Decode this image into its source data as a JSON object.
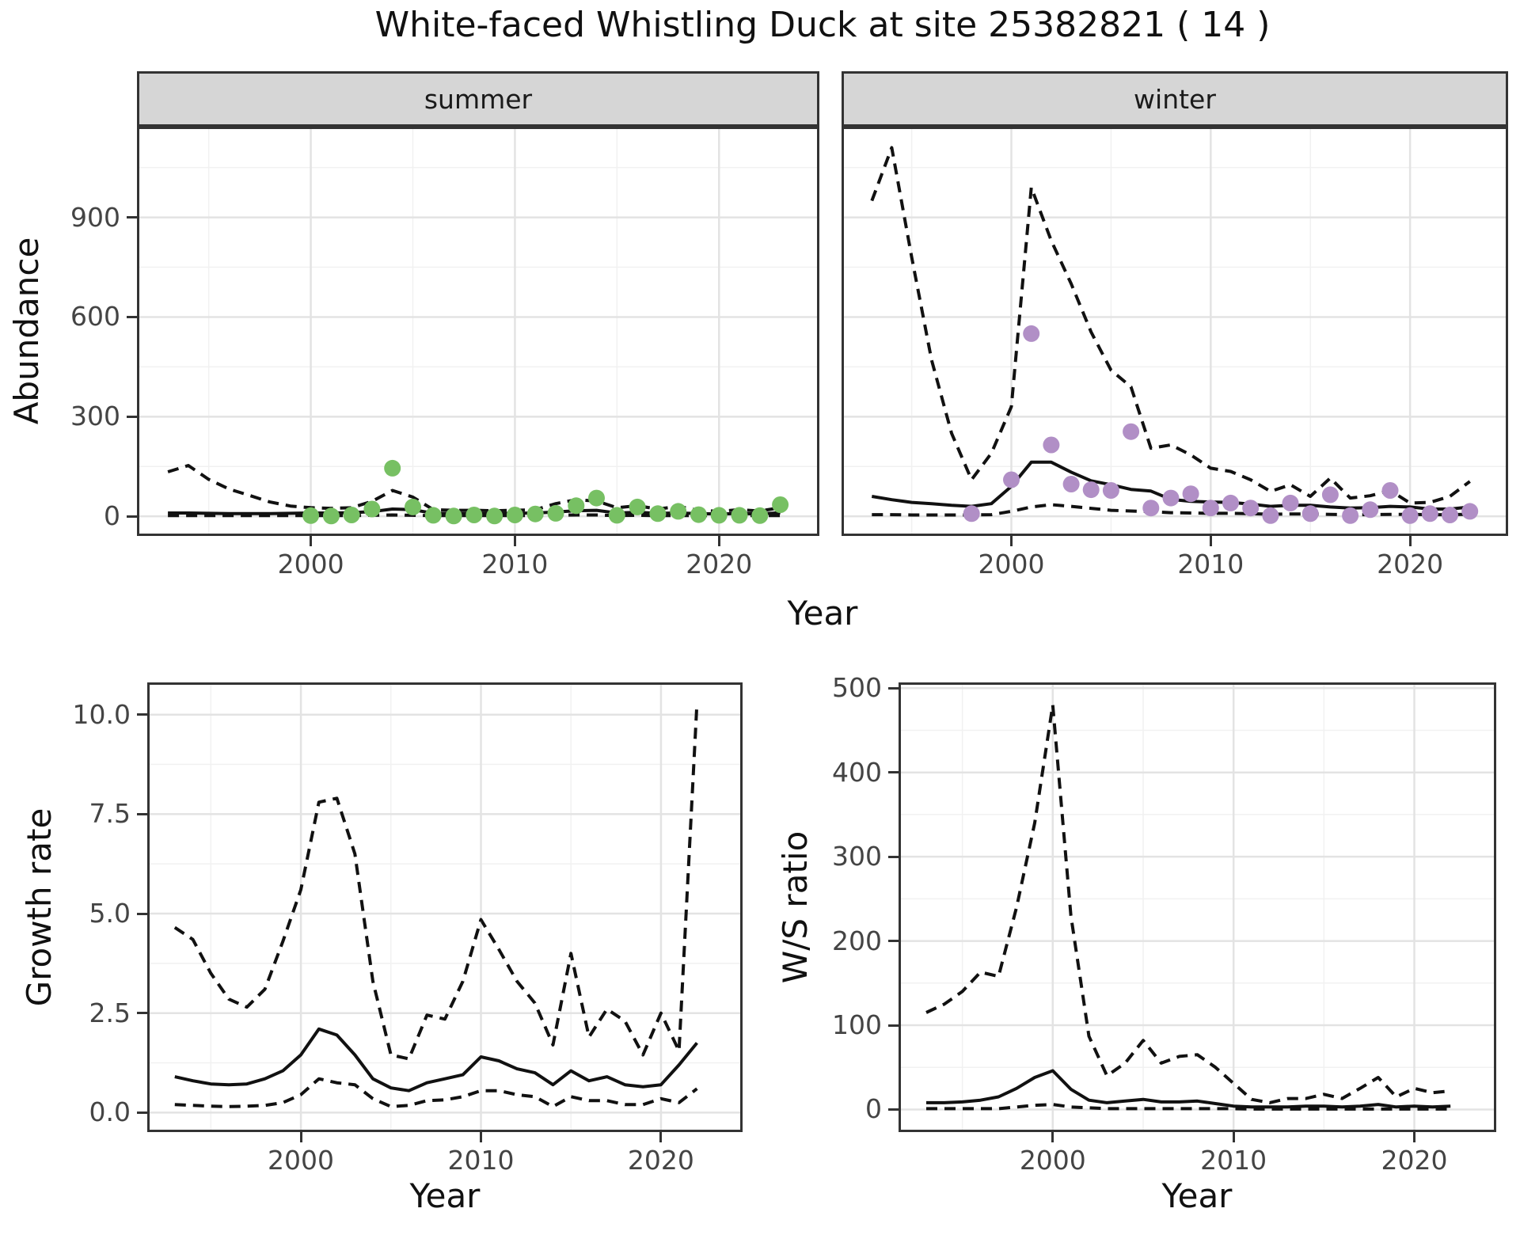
{
  "title": "White-faced Whistling Duck at site 25382821 ( 14 )",
  "colors": {
    "summer_point": "#77c063",
    "winter_point": "#b18fc6",
    "line": "#111111",
    "strip_bg": "#d6d6d6",
    "panel_border": "#333333",
    "grid_major": "#e3e3e3",
    "grid_minor": "#f1f1f1",
    "tick_text": "#444444"
  },
  "chart_data": [
    {
      "id": "abundance-summer",
      "type": "line",
      "facet_label": "summer",
      "ylabel": "Abundance",
      "xlabel": "Year",
      "xlim": [
        1991.6,
        2024.8
      ],
      "ylim": [
        -52,
        1166
      ],
      "xticks": {
        "values": [
          2000,
          2010,
          2020
        ],
        "labels": [
          "2000",
          "2010",
          "2020"
        ]
      },
      "yticks": {
        "values": [
          0,
          300,
          600,
          900
        ],
        "labels": [
          "0",
          "300",
          "600",
          "900"
        ]
      },
      "x": [
        1993,
        1994,
        1995,
        1996,
        1997,
        1998,
        1999,
        2000,
        2001,
        2002,
        2003,
        2004,
        2005,
        2006,
        2007,
        2008,
        2009,
        2010,
        2011,
        2012,
        2013,
        2014,
        2015,
        2016,
        2017,
        2018,
        2019,
        2020,
        2021,
        2022,
        2023
      ],
      "series": [
        {
          "name": "upper-ci",
          "style": "dashed",
          "values": [
            134,
            153,
            111,
            82,
            63,
            43,
            31,
            26,
            24,
            26,
            45,
            78,
            58,
            20,
            18,
            18,
            17,
            18,
            20,
            38,
            50,
            46,
            26,
            32,
            22,
            30,
            18,
            15,
            20,
            16,
            26
          ]
        },
        {
          "name": "lower-ci",
          "style": "dashed",
          "values": [
            2,
            2,
            2,
            2,
            2,
            2,
            2,
            2,
            2,
            2,
            3,
            4,
            3,
            2,
            2,
            2,
            2,
            2,
            2,
            3,
            4,
            4,
            2,
            3,
            2,
            2,
            2,
            2,
            2,
            2,
            2
          ]
        },
        {
          "name": "mean",
          "style": "solid",
          "values": [
            10,
            10,
            9,
            8,
            8,
            8,
            9,
            10,
            10,
            11,
            14,
            22,
            20,
            9,
            8,
            8,
            8,
            9,
            10,
            13,
            17,
            18,
            10,
            12,
            9,
            10,
            8,
            7,
            8,
            7,
            11
          ]
        }
      ],
      "points": {
        "color": "#77c063",
        "x": [
          2000,
          2001,
          2002,
          2003,
          2004,
          2005,
          2006,
          2007,
          2008,
          2009,
          2010,
          2011,
          2012,
          2013,
          2014,
          2015,
          2016,
          2017,
          2018,
          2019,
          2020,
          2021,
          2022,
          2023
        ],
        "y": [
          2,
          1,
          4,
          22,
          145,
          28,
          3,
          1,
          4,
          1,
          4,
          7,
          9,
          32,
          55,
          3,
          28,
          8,
          15,
          5,
          3,
          3,
          2,
          35
        ]
      }
    },
    {
      "id": "abundance-winter",
      "type": "line",
      "facet_label": "winter",
      "ylabel": "Abundance",
      "xlabel": "Year",
      "xlim": [
        1991.6,
        2024.8
      ],
      "ylim": [
        -52,
        1166
      ],
      "xticks": {
        "values": [
          2000,
          2010,
          2020
        ],
        "labels": [
          "2000",
          "2010",
          "2020"
        ]
      },
      "yticks": {
        "values": [
          0,
          300,
          600,
          900
        ],
        "labels": [
          "0",
          "300",
          "600",
          "900"
        ]
      },
      "x": [
        1993,
        1994,
        1995,
        1996,
        1997,
        1998,
        1999,
        2000,
        2001,
        2002,
        2003,
        2004,
        2005,
        2006,
        2007,
        2008,
        2009,
        2010,
        2011,
        2012,
        2013,
        2014,
        2015,
        2016,
        2017,
        2018,
        2019,
        2020,
        2021,
        2022,
        2023
      ],
      "series": [
        {
          "name": "upper-ci",
          "style": "dashed",
          "values": [
            950,
            1110,
            780,
            470,
            250,
            110,
            190,
            330,
            990,
            830,
            700,
            555,
            440,
            390,
            205,
            215,
            185,
            145,
            135,
            110,
            75,
            95,
            60,
            115,
            55,
            62,
            78,
            40,
            42,
            60,
            105
          ]
        },
        {
          "name": "lower-ci",
          "style": "dashed",
          "values": [
            5,
            5,
            4,
            4,
            4,
            4,
            5,
            15,
            28,
            35,
            30,
            24,
            18,
            16,
            14,
            11,
            10,
            9,
            9,
            8,
            6,
            7,
            7,
            6,
            5,
            5,
            6,
            6,
            5,
            5,
            6
          ]
        },
        {
          "name": "mean",
          "style": "solid",
          "values": [
            60,
            50,
            42,
            38,
            33,
            30,
            38,
            90,
            163,
            163,
            133,
            107,
            95,
            81,
            76,
            51,
            45,
            43,
            42,
            37,
            30,
            33,
            33,
            28,
            25,
            26,
            30,
            28,
            22,
            22,
            28
          ]
        }
      ],
      "points": {
        "color": "#b18fc6",
        "x": [
          1998,
          2000,
          2001,
          2002,
          2003,
          2004,
          2005,
          2006,
          2007,
          2008,
          2009,
          2010,
          2011,
          2012,
          2013,
          2014,
          2015,
          2016,
          2017,
          2018,
          2019,
          2020,
          2021,
          2022,
          2023
        ],
        "y": [
          8,
          110,
          550,
          215,
          97,
          80,
          78,
          255,
          25,
          55,
          68,
          25,
          40,
          25,
          2,
          40,
          8,
          65,
          2,
          20,
          78,
          2,
          8,
          4,
          15
        ]
      }
    },
    {
      "id": "growth-rate",
      "type": "line",
      "facet_label": "",
      "ylabel": "Growth rate",
      "xlabel": "Year",
      "xlim": [
        1991.6,
        2024.4
      ],
      "ylim": [
        -0.43,
        10.75
      ],
      "xticks": {
        "values": [
          2000,
          2010,
          2020
        ],
        "labels": [
          "2000",
          "2010",
          "2020"
        ]
      },
      "yticks": {
        "values": [
          0,
          2.5,
          5,
          7.5,
          10
        ],
        "labels": [
          "0.0",
          "2.5",
          "5.0",
          "7.5",
          "10.0"
        ]
      },
      "x": [
        1993,
        1994,
        1995,
        1996,
        1997,
        1998,
        1999,
        2000,
        2001,
        2002,
        2003,
        2004,
        2005,
        2006,
        2007,
        2008,
        2009,
        2010,
        2011,
        2012,
        2013,
        2014,
        2015,
        2016,
        2017,
        2018,
        2019,
        2020,
        2021,
        2022
      ],
      "series": [
        {
          "name": "upper-ci",
          "style": "dashed",
          "values": [
            4.65,
            4.35,
            3.5,
            2.85,
            2.65,
            3.1,
            4.3,
            5.6,
            7.8,
            7.9,
            6.5,
            3.3,
            1.45,
            1.35,
            2.45,
            2.35,
            3.3,
            4.85,
            4.1,
            3.3,
            2.75,
            1.7,
            4.0,
            1.9,
            2.6,
            2.3,
            1.45,
            2.5,
            1.55,
            10.3
          ]
        },
        {
          "name": "lower-ci",
          "style": "dashed",
          "values": [
            0.2,
            0.18,
            0.16,
            0.15,
            0.16,
            0.18,
            0.25,
            0.45,
            0.85,
            0.75,
            0.7,
            0.35,
            0.15,
            0.18,
            0.3,
            0.32,
            0.4,
            0.55,
            0.55,
            0.45,
            0.4,
            0.15,
            0.4,
            0.3,
            0.3,
            0.2,
            0.2,
            0.35,
            0.25,
            0.6
          ]
        },
        {
          "name": "mean",
          "style": "solid",
          "values": [
            0.9,
            0.8,
            0.72,
            0.7,
            0.72,
            0.85,
            1.05,
            1.45,
            2.1,
            1.95,
            1.45,
            0.85,
            0.62,
            0.55,
            0.75,
            0.85,
            0.95,
            1.4,
            1.3,
            1.1,
            1.0,
            0.7,
            1.05,
            0.8,
            0.9,
            0.7,
            0.65,
            0.7,
            1.2,
            1.75
          ]
        }
      ],
      "points": null
    },
    {
      "id": "ws-ratio",
      "type": "line",
      "facet_label": "",
      "ylabel": "W/S ratio",
      "xlabel": "Year",
      "xlim": [
        1991.6,
        2024.4
      ],
      "ylim": [
        -24,
        504
      ],
      "xticks": {
        "values": [
          2000,
          2010,
          2020
        ],
        "labels": [
          "2000",
          "2010",
          "2020"
        ]
      },
      "yticks": {
        "values": [
          0,
          100,
          200,
          300,
          400,
          500
        ],
        "labels": [
          "0",
          "100",
          "200",
          "300",
          "400",
          "500"
        ]
      },
      "x": [
        1993,
        1994,
        1995,
        1996,
        1997,
        1998,
        1999,
        2000,
        2001,
        2002,
        2003,
        2004,
        2005,
        2006,
        2007,
        2008,
        2009,
        2010,
        2011,
        2012,
        2013,
        2014,
        2015,
        2016,
        2017,
        2018,
        2019,
        2020,
        2021,
        2022
      ],
      "series": [
        {
          "name": "upper-ci",
          "style": "dashed",
          "values": [
            115,
            125,
            140,
            163,
            158,
            240,
            340,
            480,
            230,
            87,
            40,
            55,
            82,
            55,
            63,
            65,
            50,
            31,
            12,
            8,
            13,
            13,
            18,
            13,
            25,
            38,
            15,
            25,
            20,
            22
          ]
        },
        {
          "name": "lower-ci",
          "style": "dashed",
          "values": [
            1,
            1,
            1,
            1,
            1,
            3,
            5,
            6,
            3,
            2,
            1,
            1,
            1,
            1,
            1,
            1,
            1,
            1,
            0.5,
            0.5,
            0.5,
            0.5,
            0.5,
            0.5,
            0.5,
            0.5,
            0.5,
            0.5,
            0.5,
            0.5
          ]
        },
        {
          "name": "mean",
          "style": "solid",
          "values": [
            8,
            8,
            9,
            11,
            15,
            25,
            38,
            46,
            24,
            11,
            8,
            10,
            12,
            9,
            9,
            10,
            7,
            4,
            3,
            3,
            3,
            4,
            4,
            3,
            4,
            6,
            3,
            4,
            3,
            4
          ]
        }
      ],
      "points": null
    }
  ]
}
